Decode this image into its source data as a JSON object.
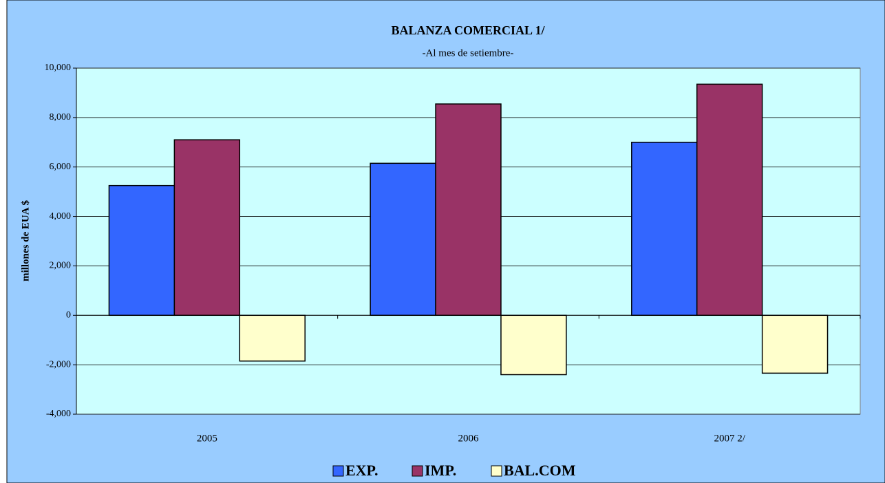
{
  "chart_data": {
    "type": "bar",
    "title": "BALANZA COMERCIAL 1/",
    "subtitle": "-Al mes de setiembre-",
    "y_label": "millones de EUA $",
    "categories": [
      "2005",
      "2006",
      "2007 2/"
    ],
    "series": [
      {
        "name": "EXP.",
        "color": "#3366ff",
        "values": [
          5250,
          6150,
          7000
        ]
      },
      {
        "name": "IMP.",
        "color": "#993366",
        "values": [
          7100,
          8550,
          9350
        ]
      },
      {
        "name": "BAL.COM",
        "color": "#ffffcc",
        "values": [
          -1850,
          -2400,
          -2340
        ]
      }
    ],
    "ylim": [
      -4000,
      10000
    ],
    "yticks": [
      {
        "value": -4000,
        "label": "-4,000"
      },
      {
        "value": -2000,
        "label": "-2,000"
      },
      0,
      {
        "value": 2000,
        "label": "2,000"
      },
      {
        "value": 4000,
        "label": "4,000"
      },
      {
        "value": 6000,
        "label": "6,000"
      },
      {
        "value": 8000,
        "label": "8,000"
      },
      {
        "value": 10000,
        "label": "10,000"
      }
    ],
    "grid": true,
    "legend": "bottom",
    "plot_background": "#ccffff",
    "background": "#99ccff"
  }
}
